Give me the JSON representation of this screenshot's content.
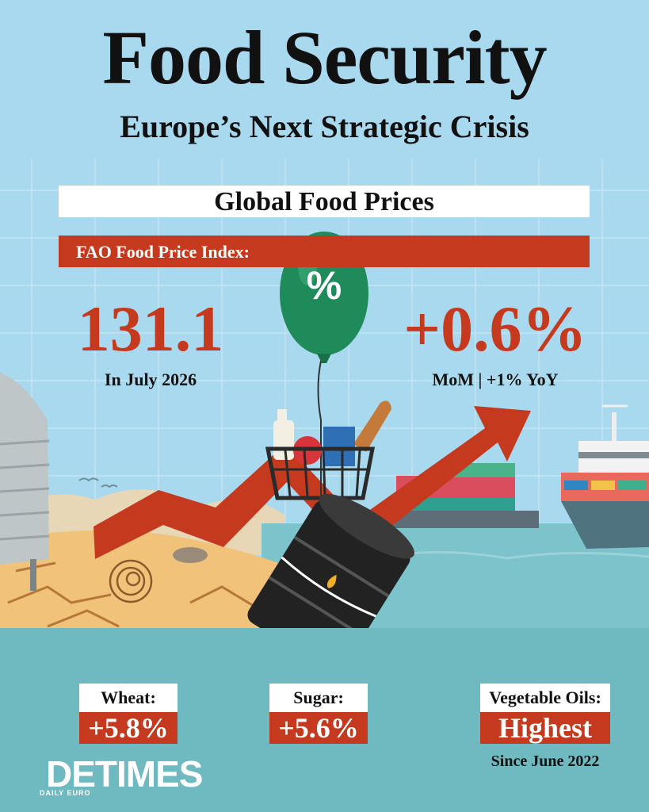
{
  "header": {
    "title": "Food Security",
    "subtitle": "Europe’s Next Strategic Crisis"
  },
  "section": {
    "title": "Global Food Prices",
    "index_label": "FAO Food Price Index:"
  },
  "stats": {
    "index_value": "131.1",
    "index_caption": "In July 2026",
    "change_value": "+0.6%",
    "change_caption": "MoM | +1% YoY"
  },
  "balloon": {
    "symbol": "%"
  },
  "commodities": [
    {
      "label": "Wheat:",
      "value": "+5.8%",
      "icon": "wheat-sack-icon"
    },
    {
      "label": "Sugar:",
      "value": "+5.6%",
      "icon": "sugar-sack-icon"
    },
    {
      "label": "Vegetable Oils:",
      "value": "Highest",
      "note": "Since June 2022",
      "icon": "oil-bottle-icon"
    }
  ],
  "logo": {
    "main": "DETIMES",
    "sub": "DAILY EURO"
  },
  "colors": {
    "sky": "#a9d9ee",
    "accent_red": "#c53a1e",
    "water": "#6fb9c0",
    "balloon_green": "#1f8a5a",
    "barrel": "#222222",
    "sand": "#f0c27a"
  }
}
